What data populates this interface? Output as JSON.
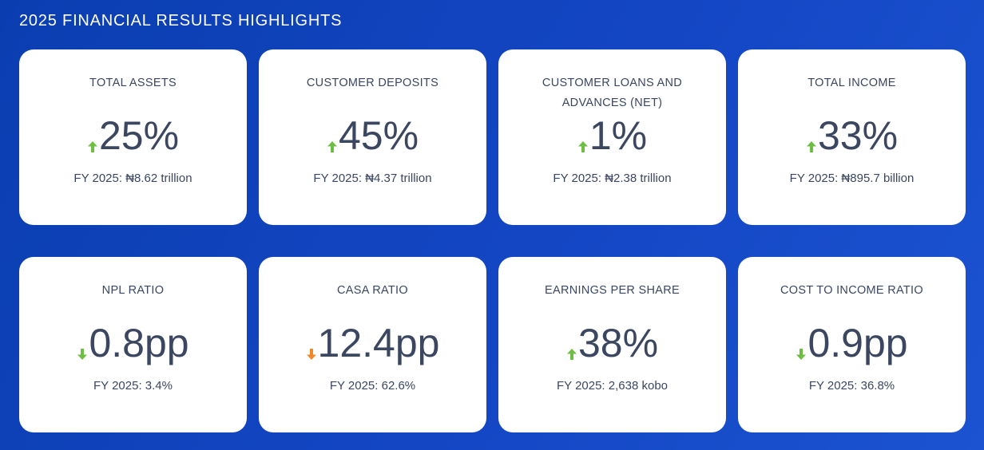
{
  "header": {
    "title": "2025 FINANCIAL RESULTS HIGHLIGHTS"
  },
  "colors": {
    "up": "#6fbe44",
    "down_green": "#6fbe44",
    "down_orange": "#f0892a"
  },
  "cards": [
    {
      "label": "TOTAL ASSETS",
      "value": "25%",
      "sub": "FY 2025: ₦8.62 trillion",
      "direction": "up",
      "arrow_color": "#6fbe44",
      "arrow_icon": "arrow-up-icon"
    },
    {
      "label": "CUSTOMER DEPOSITS",
      "value": "45%",
      "sub": "FY 2025: ₦4.37 trillion",
      "direction": "up",
      "arrow_color": "#6fbe44",
      "arrow_icon": "arrow-up-icon"
    },
    {
      "label": "CUSTOMER LOANS AND ADVANCES (NET)",
      "value": "1%",
      "sub": "FY 2025: ₦2.38 trillion",
      "direction": "up",
      "arrow_color": "#6fbe44",
      "arrow_icon": "arrow-up-icon"
    },
    {
      "label": "TOTAL INCOME",
      "value": "33%",
      "sub": "FY 2025: ₦895.7 billion",
      "direction": "up",
      "arrow_color": "#6fbe44",
      "arrow_icon": "arrow-up-icon"
    },
    {
      "label": "NPL RATIO",
      "value": "0.8pp",
      "sub": "FY 2025: 3.4%",
      "direction": "down",
      "arrow_color": "#6fbe44",
      "arrow_icon": "arrow-down-icon"
    },
    {
      "label": "CASA RATIO",
      "value": "12.4pp",
      "sub": "FY 2025: 62.6%",
      "direction": "down",
      "arrow_color": "#f0892a",
      "arrow_icon": "arrow-down-icon"
    },
    {
      "label": "EARNINGS PER SHARE",
      "value": "38%",
      "sub": "FY 2025: 2,638 kobo",
      "direction": "up",
      "arrow_color": "#6fbe44",
      "arrow_icon": "arrow-up-icon"
    },
    {
      "label": "COST TO INCOME RATIO",
      "value": "0.9pp",
      "sub": "FY 2025: 36.8%",
      "direction": "down",
      "arrow_color": "#6fbe44",
      "arrow_icon": "arrow-down-icon"
    }
  ]
}
